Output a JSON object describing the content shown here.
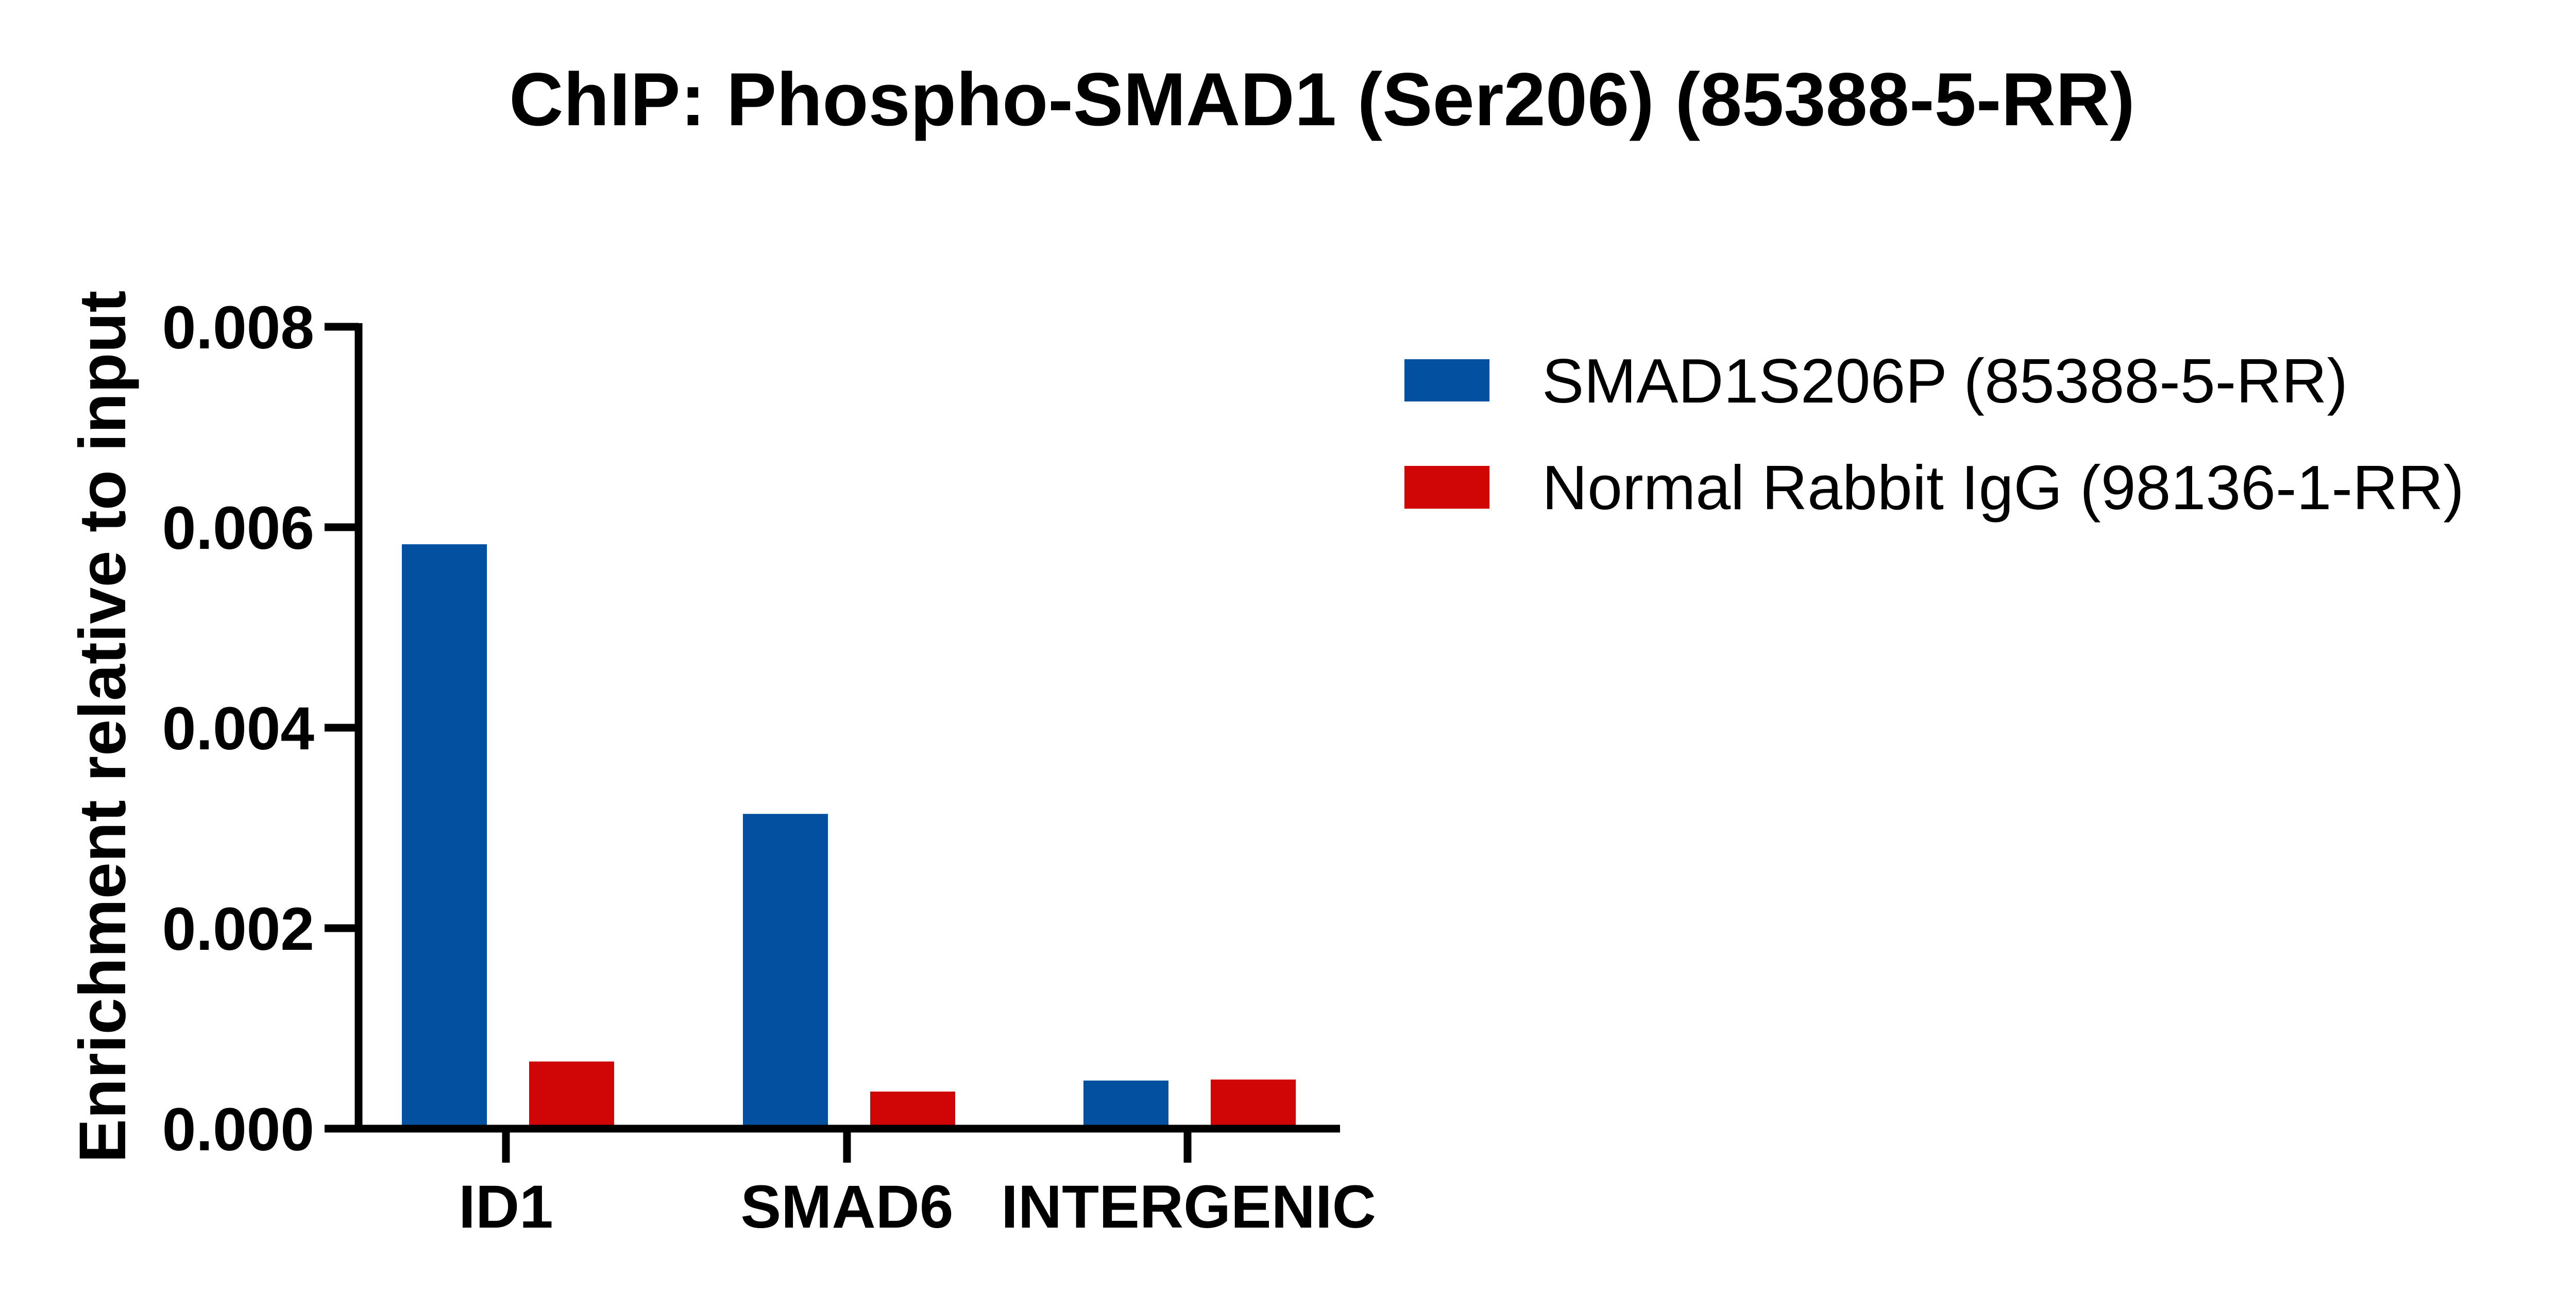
{
  "chart_data": {
    "type": "bar",
    "title": "ChIP: Phospho-SMAD1 (Ser206) (85388-5-RR)",
    "xlabel": "",
    "ylabel": "Enrichment relative to input",
    "categories": [
      "ID1",
      "SMAD6",
      "INTERGENIC"
    ],
    "series": [
      {
        "name": "SMAD1S206P (85388-5-RR)",
        "color": "#0350A0",
        "values": [
          0.00583,
          0.00314,
          0.00048
        ]
      },
      {
        "name": "Normal Rabbit IgG (98136-1-RR)",
        "color": "#D00505",
        "values": [
          0.00067,
          0.00037,
          0.00049
        ]
      }
    ],
    "ylim": [
      0,
      0.008
    ],
    "yticks": [
      "0.000",
      "0.002",
      "0.004",
      "0.006",
      "0.008"
    ],
    "ytick_values": [
      0,
      0.002,
      0.004,
      0.006,
      0.008
    ],
    "grid": false,
    "legend_position": "upper right (outside plot)"
  },
  "title": "ChIP: Phospho-SMAD1 (Ser206) (85388-5-RR)",
  "y_axis": {
    "label": "Enrichment relative to input",
    "ticks": [
      "0.000",
      "0.002",
      "0.004",
      "0.006",
      "0.008"
    ]
  },
  "x_axis": {
    "categories": [
      "ID1",
      "SMAD6",
      "INTERGENIC"
    ]
  },
  "legend": {
    "items": [
      {
        "label": "SMAD1S206P (85388-5-RR)",
        "color": "#0350A0"
      },
      {
        "label": "Normal Rabbit IgG (98136-1-RR)",
        "color": "#D00505"
      }
    ]
  }
}
